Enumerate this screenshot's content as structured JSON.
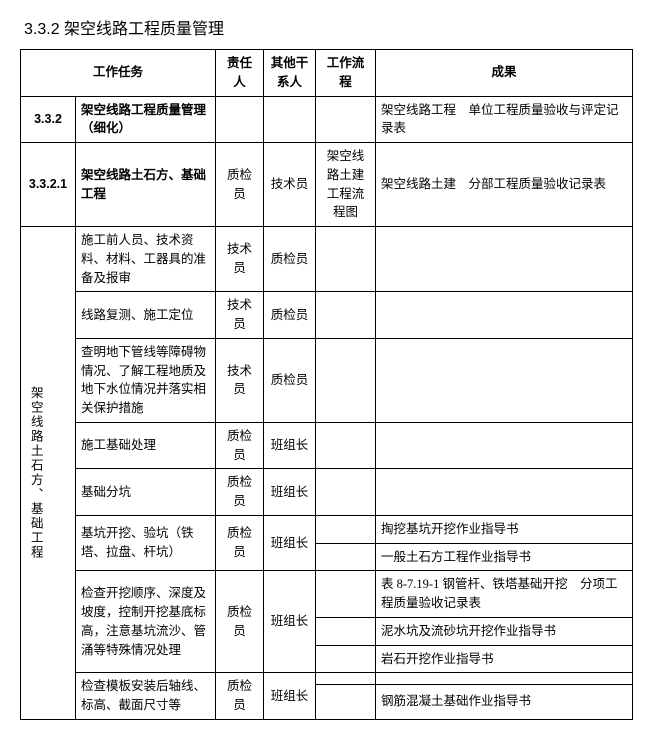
{
  "section_title": "3.3.2  架空线路工程质量管理",
  "headers": {
    "task": "工作任务",
    "resp": "责任人",
    "other": "其他干系人",
    "flow": "工作流程",
    "result": "成果"
  },
  "r1": {
    "num": "3.3.2",
    "task": "架空线路工程质量管理（细化）",
    "result": "架空线路工程　单位工程质量验收与评定记录表"
  },
  "r2": {
    "num": "3.3.2.1",
    "task": "架空线路土石方、基础工程",
    "resp": "质检员",
    "other": "技术员",
    "flow": "架空线路土建工程流程图",
    "result": "架空线路土建　分部工程质量验收记录表"
  },
  "group_label": "架空线路土石方、基础工程",
  "g": {
    "a": {
      "task": "施工前人员、技术资料、材料、工器具的准备及报审",
      "resp": "技术员",
      "other": "质检员"
    },
    "b": {
      "task": "线路复测、施工定位",
      "resp": "技术员",
      "other": "质检员"
    },
    "c": {
      "task": "查明地下管线等障碍物情况、了解工程地质及地下水位情况并落实相关保护措施",
      "resp": "技术员",
      "other": "质检员"
    },
    "d": {
      "task": "施工基础处理",
      "resp": "质检员",
      "other": "班组长"
    },
    "e": {
      "task": "基础分坑",
      "resp": "质检员",
      "other": "班组长"
    },
    "f": {
      "task": "基坑开挖、验坑（铁塔、拉盘、杆坑）",
      "resp": "质检员",
      "other": "班组长",
      "res1": "掏挖基坑开挖作业指导书",
      "res2": "一般土石方工程作业指导书"
    },
    "h": {
      "task": "检查开挖顺序、深度及坡度，控制开挖基底标高，注意基坑流沙、管涌等特殊情况处理",
      "resp": "质检员",
      "other": "班组长",
      "res1": "表 8-7.19-1 钢管杆、铁塔基础开挖　分项工程质量验收记录表",
      "res2": "泥水坑及流砂坑开挖作业指导书",
      "res3": "岩石开挖作业指导书"
    },
    "i": {
      "task": "检查模板安装后轴线、标高、截面尺寸等",
      "resp": "质检员",
      "other": "班组长",
      "res1": "钢筋混凝土基础作业指导书"
    }
  }
}
